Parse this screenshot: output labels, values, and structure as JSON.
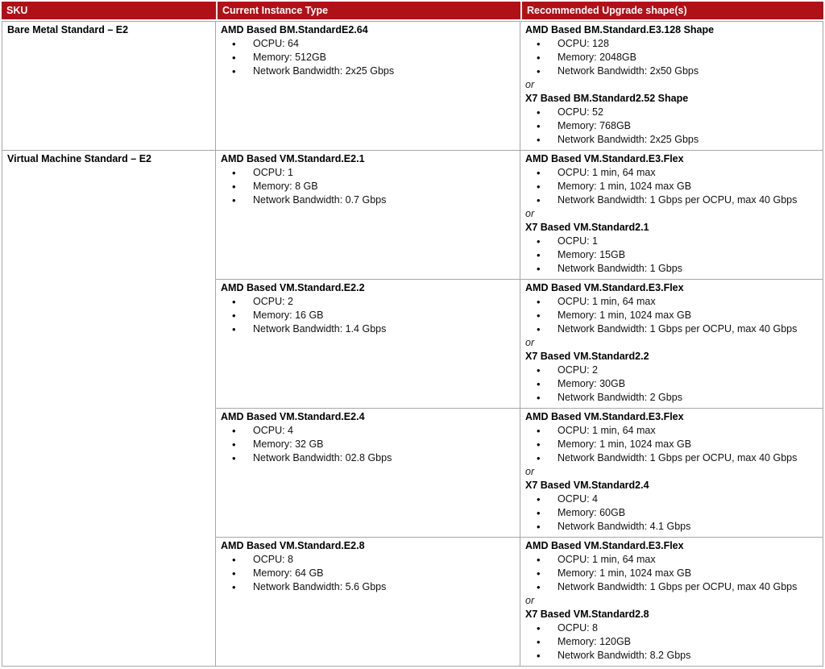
{
  "colors": {
    "header_bg": "#B01117",
    "header_text": "#FFFFFF",
    "grid_border": "#A6A6A6"
  },
  "header": {
    "columns": [
      "SKU",
      "Current Instance Type",
      "Recommended Upgrade shape(s)"
    ]
  },
  "rows": [
    {
      "sku": "Bare Metal Standard – E2",
      "subrows": [
        {
          "current": {
            "title": "AMD Based BM.StandardE2.64",
            "bullets": [
              "OCPU: 64",
              "Memory: 512GB",
              "Network Bandwidth: 2x25 Gbps"
            ]
          },
          "recommended": {
            "primary": {
              "title": "AMD Based BM.Standard.E3.128 Shape",
              "bullets": [
                "OCPU: 128",
                "Memory: 2048GB",
                "Network Bandwidth: 2x50 Gbps"
              ]
            },
            "separator": "or",
            "alternate": {
              "title": "X7 Based BM.Standard2.52 Shape",
              "bullets": [
                "OCPU: 52",
                "Memory: 768GB",
                "Network Bandwidth: 2x25 Gbps"
              ]
            }
          }
        }
      ]
    },
    {
      "sku": "Virtual Machine Standard – E2",
      "subrows": [
        {
          "current": {
            "title": "AMD Based VM.Standard.E2.1",
            "bullets": [
              "OCPU: 1",
              "Memory: 8 GB",
              "Network Bandwidth: 0.7 Gbps"
            ]
          },
          "recommended": {
            "primary": {
              "title": "AMD Based VM.Standard.E3.Flex",
              "bullets": [
                "OCPU: 1 min, 64 max",
                "Memory: 1 min, 1024 max GB",
                "Network Bandwidth: 1 Gbps per OCPU, max 40 Gbps"
              ]
            },
            "separator": "or",
            "alternate": {
              "title": "X7 Based VM.Standard2.1",
              "bullets": [
                "OCPU: 1",
                "Memory: 15GB",
                "Network Bandwidth: 1 Gbps"
              ]
            }
          }
        },
        {
          "current": {
            "title": "AMD Based VM.Standard.E2.2",
            "bullets": [
              "OCPU: 2",
              "Memory: 16 GB",
              "Network Bandwidth: 1.4 Gbps"
            ]
          },
          "recommended": {
            "primary": {
              "title": "AMD Based VM.Standard.E3.Flex",
              "bullets": [
                "OCPU: 1 min, 64 max",
                "Memory: 1 min, 1024 max GB",
                "Network Bandwidth: 1 Gbps per OCPU, max 40 Gbps"
              ]
            },
            "separator": "or",
            "alternate": {
              "title": "X7 Based VM.Standard2.2",
              "bullets": [
                "OCPU: 2",
                "Memory: 30GB",
                "Network Bandwidth: 2 Gbps"
              ]
            }
          }
        },
        {
          "current": {
            "title": "AMD Based VM.Standard.E2.4",
            "bullets": [
              "OCPU: 4",
              "Memory: 32 GB",
              "Network Bandwidth: 02.8 Gbps"
            ]
          },
          "recommended": {
            "primary": {
              "title": "AMD Based VM.Standard.E3.Flex",
              "bullets": [
                "OCPU: 1 min, 64 max",
                "Memory: 1 min, 1024 max GB",
                "Network Bandwidth: 1 Gbps per OCPU, max 40 Gbps"
              ]
            },
            "separator": "or",
            "alternate": {
              "title": "X7 Based VM.Standard2.4",
              "bullets": [
                "OCPU: 4",
                "Memory: 60GB",
                "Network Bandwidth: 4.1 Gbps"
              ]
            }
          }
        },
        {
          "current": {
            "title": "AMD Based VM.Standard.E2.8",
            "bullets": [
              "OCPU: 8",
              "Memory: 64 GB",
              "Network Bandwidth: 5.6 Gbps"
            ]
          },
          "recommended": {
            "primary": {
              "title": "AMD Based VM.Standard.E3.Flex",
              "bullets": [
                "OCPU: 1 min, 64 max",
                "Memory: 1 min, 1024 max GB",
                "Network Bandwidth: 1 Gbps per OCPU, max 40 Gbps"
              ]
            },
            "separator": "or",
            "alternate": {
              "title": "X7 Based VM.Standard2.8",
              "bullets": [
                "OCPU: 8",
                "Memory: 120GB",
                "Network Bandwidth: 8.2 Gbps"
              ]
            }
          }
        }
      ]
    }
  ]
}
